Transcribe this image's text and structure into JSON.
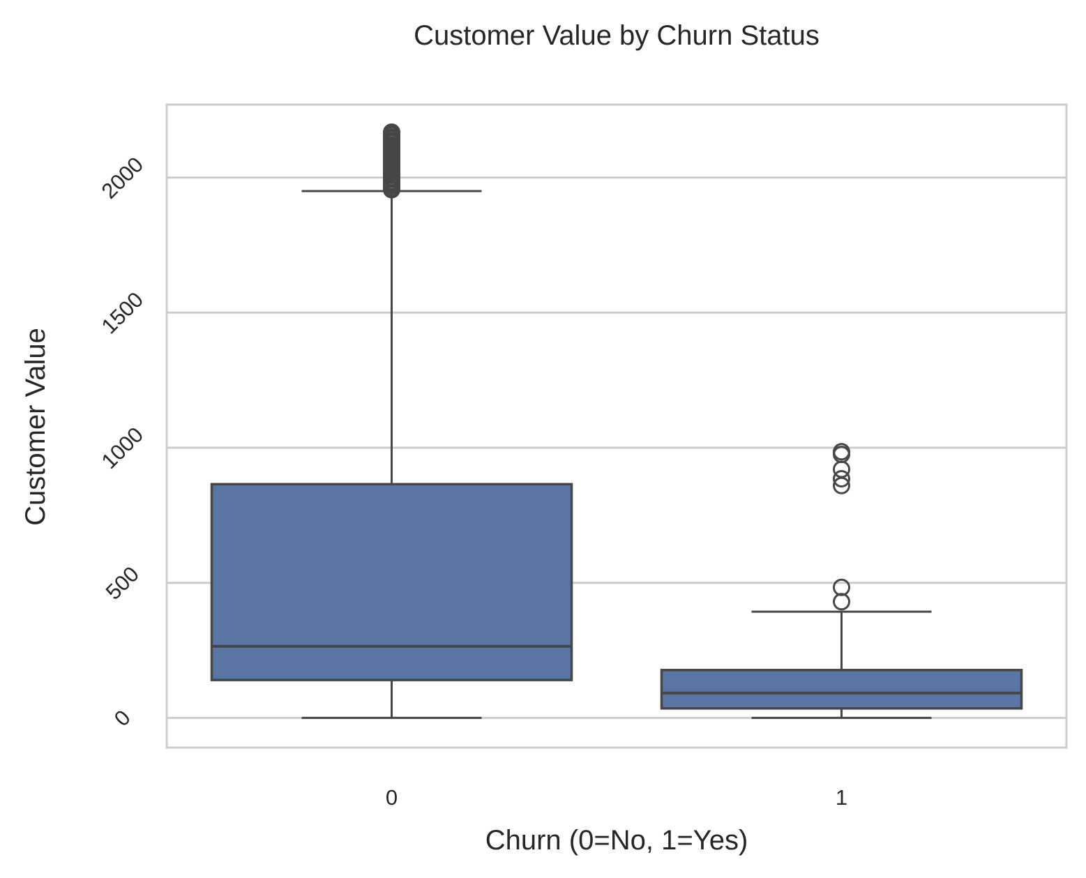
{
  "chart_data": {
    "type": "box",
    "title": "Customer Value by Churn Status",
    "xlabel": "Churn (0=No, 1=Yes)",
    "ylabel": "Customer Value",
    "ylim": [
      -110,
      2270
    ],
    "yticks": [
      0,
      500,
      1000,
      1500,
      2000
    ],
    "ytick_rotation_deg": 45,
    "grid": "horizontal",
    "box_color": "#5975a4",
    "line_color": "#464646",
    "grid_color": "#cccccc",
    "categories": [
      "0",
      "1"
    ],
    "boxes": [
      {
        "category": "0",
        "whisker_low": 0,
        "q1": 140,
        "median": 265,
        "q3": 865,
        "whisker_high": 1950,
        "outliers": [
          1955,
          1962,
          1970,
          1978,
          1985,
          1993,
          2000,
          2008,
          2015,
          2023,
          2030,
          2038,
          2045,
          2053,
          2060,
          2068,
          2075,
          2083,
          2090,
          2098,
          2105,
          2113,
          2120,
          2128,
          2135,
          2143,
          2150,
          2158,
          2163,
          2168
        ]
      },
      {
        "category": "1",
        "whisker_low": 0,
        "q1": 35,
        "median": 92,
        "q3": 177,
        "whisker_high": 393,
        "outliers": [
          430,
          483,
          860,
          885,
          920,
          975,
          985
        ]
      }
    ]
  }
}
